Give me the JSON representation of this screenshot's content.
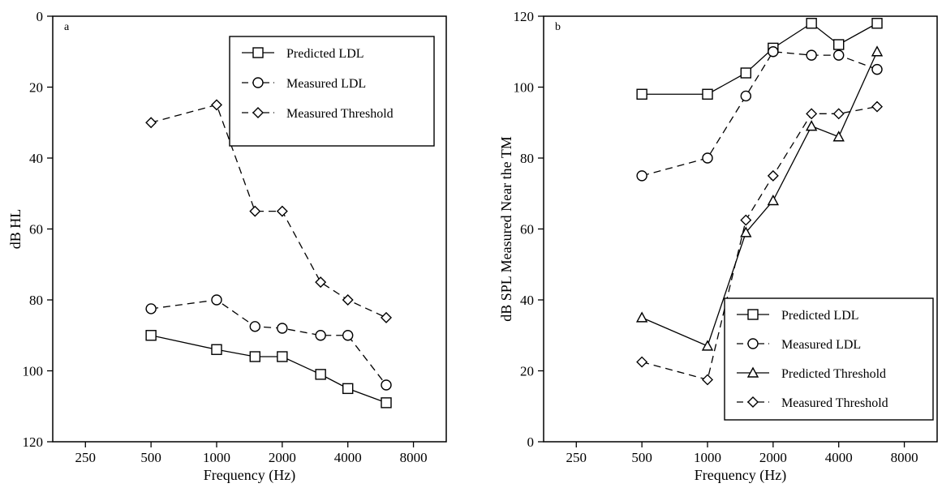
{
  "chart_data": [
    {
      "type": "line",
      "panel_label": "a",
      "xlabel": "Frequency (Hz)",
      "ylabel": "dB HL",
      "x_scale": "log2",
      "xlim": [
        177,
        11314
      ],
      "x_ticks": [
        250,
        500,
        1000,
        2000,
        4000,
        8000
      ],
      "ylim": [
        0,
        120
      ],
      "y_inverted": true,
      "y_ticks": [
        0,
        20,
        40,
        60,
        80,
        100,
        120
      ],
      "grid": false,
      "legend_position": "top-right",
      "series": [
        {
          "name": "Predicted LDL",
          "marker": "square",
          "line": "solid",
          "x": [
            500,
            1000,
            1500,
            2000,
            3000,
            4000,
            6000
          ],
          "y": [
            90,
            94,
            96,
            96,
            101,
            105,
            109
          ]
        },
        {
          "name": "Measured LDL",
          "marker": "circle",
          "line": "dashed",
          "x": [
            500,
            1000,
            1500,
            2000,
            3000,
            4000,
            6000
          ],
          "y": [
            82.5,
            80,
            87.5,
            88,
            90,
            90,
            104
          ]
        },
        {
          "name": "Measured Threshold",
          "marker": "diamond",
          "line": "dashed",
          "x": [
            500,
            1000,
            1500,
            2000,
            3000,
            4000,
            6000
          ],
          "y": [
            30,
            25,
            55,
            55,
            75,
            80,
            85
          ]
        }
      ]
    },
    {
      "type": "line",
      "panel_label": "b",
      "xlabel": "Frequency (Hz)",
      "ylabel": "dB SPL Measured Near the TM",
      "x_scale": "log2",
      "xlim": [
        177,
        11314
      ],
      "x_ticks": [
        250,
        500,
        1000,
        2000,
        4000,
        8000
      ],
      "ylim": [
        0,
        120
      ],
      "y_inverted": false,
      "y_ticks": [
        0,
        20,
        40,
        60,
        80,
        100,
        120
      ],
      "grid": false,
      "legend_position": "bottom-right",
      "series": [
        {
          "name": "Predicted LDL",
          "marker": "square",
          "line": "solid",
          "x": [
            500,
            1000,
            1500,
            2000,
            3000,
            4000,
            6000
          ],
          "y": [
            98,
            98,
            104,
            111,
            118,
            112,
            118
          ]
        },
        {
          "name": "Measured LDL",
          "marker": "circle",
          "line": "dashed",
          "x": [
            500,
            1000,
            1500,
            2000,
            3000,
            4000,
            6000
          ],
          "y": [
            75,
            80,
            97.5,
            110,
            109,
            109,
            105
          ]
        },
        {
          "name": "Predicted Threshold",
          "marker": "triangle",
          "line": "solid",
          "x": [
            500,
            1000,
            1500,
            2000,
            3000,
            4000,
            6000
          ],
          "y": [
            35,
            27,
            59,
            68,
            89,
            86,
            110
          ]
        },
        {
          "name": "Measured Threshold",
          "marker": "diamond",
          "line": "dashed",
          "x": [
            500,
            1000,
            1500,
            2000,
            3000,
            4000,
            6000
          ],
          "y": [
            22.5,
            17.5,
            62.5,
            75,
            92.5,
            92.5,
            94.5
          ]
        }
      ]
    }
  ]
}
